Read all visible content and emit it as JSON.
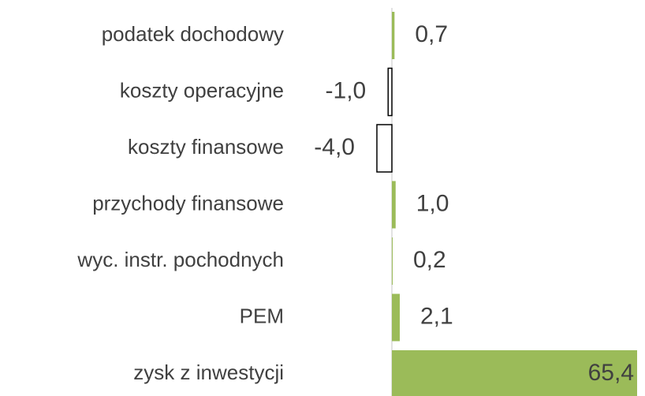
{
  "chart_data": {
    "type": "bar",
    "orientation": "horizontal",
    "categories": [
      "podatek dochodowy",
      "koszty operacyjne",
      "koszty finansowe",
      "przychody finansowe",
      "wyc. instr. pochodnych",
      "PEM",
      "zysk z inwestycji"
    ],
    "values": [
      0.7,
      -1.0,
      -4.0,
      1.0,
      0.2,
      2.1,
      65.4
    ],
    "value_labels": [
      "0,7",
      "-1,0",
      "-4,0",
      "1,0",
      "0,2",
      "2,1",
      "65,4"
    ],
    "color": "#9bbb59",
    "negative_color": "#ffffff"
  }
}
